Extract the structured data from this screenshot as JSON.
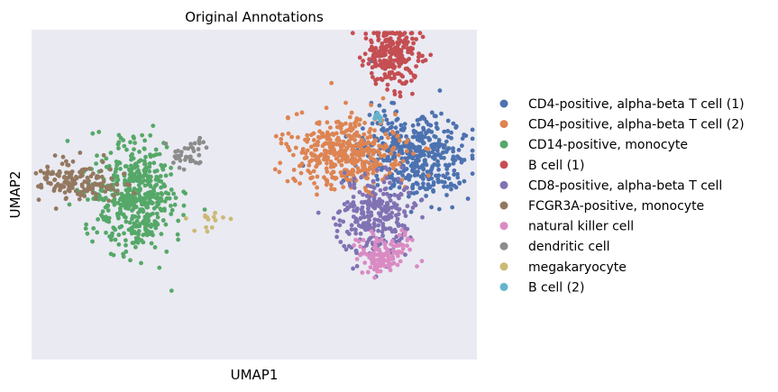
{
  "chart_data": {
    "type": "scatter",
    "title": "Original Annotations",
    "xlabel": "UMAP1",
    "ylabel": "UMAP2",
    "xticks": [],
    "yticks": [],
    "xlim": [
      0,
      100
    ],
    "ylim": [
      0,
      100
    ],
    "grid": false,
    "background": "#eaeaf2",
    "legend_position": "right, outside",
    "series": [
      {
        "name": "CD4-positive, alpha-beta T cell (1)",
        "color": "#4c72b0",
        "clusters": [
          {
            "cx": 86.0,
            "cy": 38.0,
            "sx": 6.2,
            "sy": 6.8,
            "n": 430
          },
          {
            "cx": 80.0,
            "cy": 28.0,
            "sx": 2.0,
            "sy": 2.0,
            "n": 12
          }
        ]
      },
      {
        "name": "CD4-positive, alpha-beta T cell (2)",
        "color": "#dd8452",
        "clusters": [
          {
            "cx": 70.5,
            "cy": 37.0,
            "sx": 6.2,
            "sy": 5.4,
            "n": 420
          }
        ]
      },
      {
        "name": "CD14-positive, monocyte",
        "color": "#55a868",
        "clusters": [
          {
            "cx": 23.5,
            "cy": 51.0,
            "sx": 4.8,
            "sy": 8.2,
            "n": 480
          }
        ]
      },
      {
        "name": "B cell (1)",
        "color": "#c44e52",
        "clusters": [
          {
            "cx": 81.0,
            "cy": 8.0,
            "sx": 3.0,
            "sy": 4.6,
            "n": 260
          }
        ]
      },
      {
        "name": "CD8-positive, alpha-beta T cell",
        "color": "#8172b3",
        "clusters": [
          {
            "cx": 77.0,
            "cy": 57.0,
            "sx": 4.2,
            "sy": 6.2,
            "n": 260
          }
        ]
      },
      {
        "name": "FCGR3A-positive, monocyte",
        "color": "#937860",
        "clusters": [
          {
            "cx": 10.5,
            "cy": 46.0,
            "sx": 4.4,
            "sy": 3.0,
            "n": 150
          }
        ]
      },
      {
        "name": "natural killer cell",
        "color": "#da8bc3",
        "clusters": [
          {
            "cx": 78.5,
            "cy": 68.5,
            "sx": 3.3,
            "sy": 2.8,
            "n": 120
          },
          {
            "cx": 84.5,
            "cy": 63.5,
            "sx": 0.9,
            "sy": 1.2,
            "n": 8
          }
        ]
      },
      {
        "name": "dendritic cell",
        "color": "#8c8c8c",
        "clusters": [
          {
            "cx": 35.5,
            "cy": 38.0,
            "sx": 2.0,
            "sy": 2.0,
            "n": 40
          }
        ]
      },
      {
        "name": "megakaryocyte",
        "color": "#ccb974",
        "clusters": [
          {
            "cx": 40.5,
            "cy": 58.0,
            "sx": 2.5,
            "sy": 2.0,
            "n": 14
          }
        ]
      },
      {
        "name": "B cell (2)",
        "color": "#64b5cd",
        "clusters": [
          {
            "cx": 78.0,
            "cy": 26.5,
            "sx": 0.6,
            "sy": 0.8,
            "n": 10
          }
        ]
      }
    ]
  }
}
